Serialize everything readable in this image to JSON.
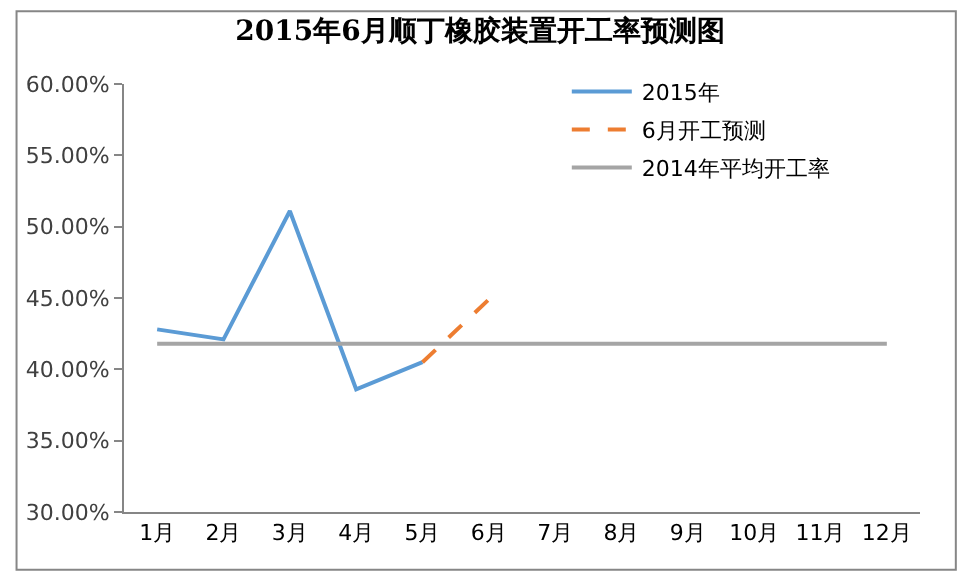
{
  "chart_data": {
    "type": "line",
    "title": "2015年6月顺丁橡胶装置开工率预测图",
    "categories": [
      "1月",
      "2月",
      "3月",
      "4月",
      "5月",
      "6月",
      "7月",
      "8月",
      "9月",
      "10月",
      "11月",
      "12月"
    ],
    "series": [
      {
        "name": "2015年",
        "color": "#5b9bd5",
        "values": [
          42.8,
          42.1,
          51.1,
          38.6,
          40.5,
          null,
          null,
          null,
          null,
          null,
          null,
          null
        ]
      },
      {
        "name": "6月开工预测",
        "color": "#ed7d31",
        "line_style": "dashed",
        "values": [
          null,
          null,
          null,
          null,
          40.5,
          44.9,
          null,
          null,
          null,
          null,
          null,
          null
        ]
      },
      {
        "name": "2014年平均开工率",
        "color": "#a5a5a5",
        "values": [
          41.8,
          41.8,
          41.8,
          41.8,
          41.8,
          41.8,
          41.8,
          41.8,
          41.8,
          41.8,
          41.8,
          41.8
        ]
      }
    ],
    "ylim": [
      30,
      60
    ],
    "yticks": [
      {
        "value": 30,
        "label": "30.00%"
      },
      {
        "value": 35,
        "label": "35.00%"
      },
      {
        "value": 40,
        "label": "40.00%"
      },
      {
        "value": 45,
        "label": "45.00%"
      },
      {
        "value": 50,
        "label": "50.00%"
      },
      {
        "value": 55,
        "label": "55.00%"
      },
      {
        "value": 60,
        "label": "60.00%"
      }
    ],
    "legend": "top right",
    "marker": "none",
    "line_style": "solid"
  }
}
